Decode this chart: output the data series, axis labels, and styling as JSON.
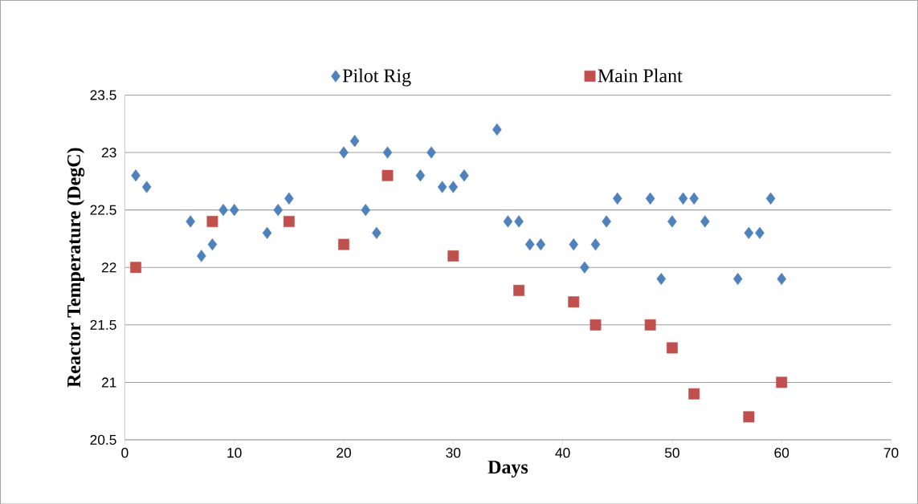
{
  "chart_data": {
    "type": "scatter",
    "xlabel": "Days",
    "ylabel": "Reactor Temperature (DegC)",
    "xlim": [
      0,
      70
    ],
    "xticks": [
      0,
      10,
      20,
      30,
      40,
      50,
      60,
      70
    ],
    "ylim": [
      20.5,
      23.5
    ],
    "yticks": [
      20.5,
      21,
      21.5,
      22,
      22.5,
      23,
      23.5
    ],
    "grid": "y",
    "legend": "top",
    "series": [
      {
        "name": "Pilot Rig",
        "color": "#4f81bd",
        "marker": "diamond",
        "x": [
          1,
          2,
          6,
          7,
          8,
          9,
          10,
          13,
          14,
          15,
          20,
          21,
          22,
          23,
          24,
          27,
          28,
          29,
          30,
          31,
          34,
          35,
          36,
          37,
          38,
          41,
          42,
          43,
          44,
          45,
          48,
          49,
          50,
          51,
          52,
          53,
          56,
          57,
          58,
          59,
          60
        ],
        "values": [
          22.8,
          22.7,
          22.4,
          22.1,
          22.2,
          22.5,
          22.5,
          22.3,
          22.5,
          22.6,
          23.0,
          23.1,
          22.5,
          22.3,
          23.0,
          22.8,
          23.0,
          22.7,
          22.7,
          22.8,
          23.2,
          22.4,
          22.4,
          22.2,
          22.2,
          22.2,
          22.0,
          22.2,
          22.4,
          22.6,
          22.6,
          21.9,
          22.4,
          22.6,
          22.6,
          22.4,
          21.9,
          22.3,
          22.3,
          22.6,
          21.9
        ]
      },
      {
        "name": "Main Plant",
        "color": "#c0504d",
        "marker": "square",
        "x": [
          1,
          8,
          15,
          20,
          24,
          30,
          36,
          41,
          43,
          48,
          50,
          52,
          57,
          60
        ],
        "values": [
          22.0,
          22.4,
          22.4,
          22.2,
          22.8,
          22.1,
          21.8,
          21.7,
          21.5,
          21.5,
          21.3,
          20.9,
          20.7,
          21.0
        ]
      }
    ]
  }
}
